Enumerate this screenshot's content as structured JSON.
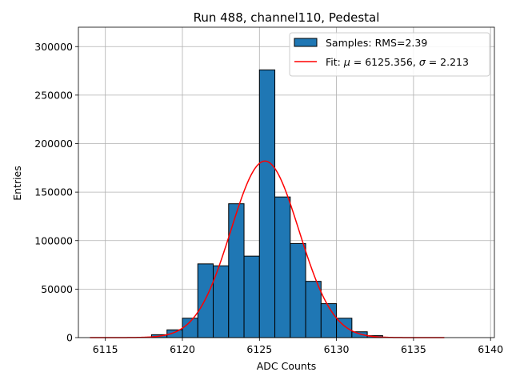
{
  "chart_data": {
    "type": "bar",
    "title": "Run 488, channel110, Pedestal",
    "xlabel": "ADC Counts",
    "ylabel": "Entries",
    "xlim": [
      6113.25,
      6140.25
    ],
    "ylim": [
      0,
      320000
    ],
    "grid": true,
    "legend_position": "top-right",
    "x_ticks": [
      6115,
      6120,
      6125,
      6130,
      6135,
      6140
    ],
    "y_ticks": [
      0,
      50000,
      100000,
      150000,
      200000,
      250000,
      300000
    ],
    "histogram": {
      "name": "Samples: RMS=2.39",
      "color": "#1f77b4",
      "bin_width": 1,
      "bin_centers": [
        6118.5,
        6119.5,
        6120.5,
        6121.5,
        6122.5,
        6123.5,
        6124.5,
        6125.5,
        6126.5,
        6127.5,
        6128.5,
        6129.5,
        6130.5,
        6131.5,
        6132.5
      ],
      "values": [
        3000,
        8000,
        20000,
        76000,
        74000,
        138000,
        84000,
        276000,
        145000,
        97000,
        58000,
        35000,
        20000,
        6000,
        2000
      ]
    },
    "fit": {
      "name": "Fit: μ = 6125.356, σ = 2.213",
      "color": "#ff0000",
      "mu": 6125.356,
      "sigma": 2.213,
      "amplitude": 182000,
      "x_range": [
        6114,
        6137
      ]
    }
  }
}
